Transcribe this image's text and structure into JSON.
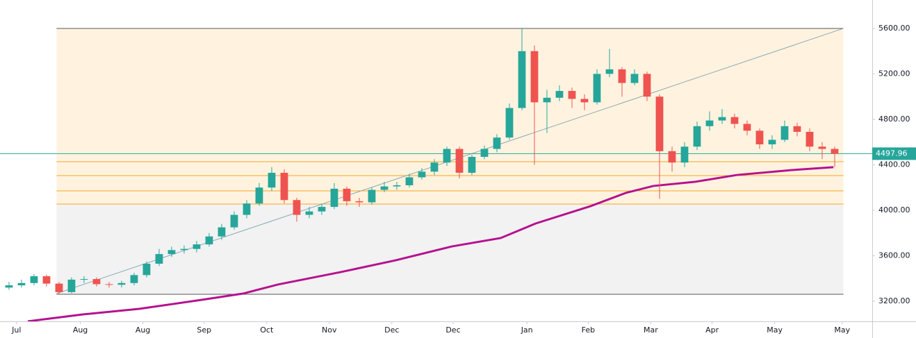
{
  "chart_data": {
    "type": "candlestick",
    "up_color": "#26a69a",
    "down_color": "#ef5350",
    "open": [
      3320,
      3340,
      3360,
      3420,
      3355,
      3280,
      3390,
      3395,
      3350,
      3345,
      3360,
      3430,
      3530,
      3615,
      3650,
      3660,
      3700,
      3770,
      3850,
      3960,
      4060,
      4200,
      4330,
      4090,
      3960,
      3990,
      4030,
      4190,
      4080,
      4070,
      4180,
      4210,
      4220,
      4290,
      4340,
      4420,
      4540,
      4330,
      4470,
      4540,
      4640,
      4900,
      5400,
      4950,
      4990,
      5050,
      4980,
      4950,
      5200,
      5240,
      5120,
      5200,
      5000,
      4520,
      4420,
      4560,
      4740,
      4790,
      4820,
      4760,
      4700,
      4580,
      4620,
      4740,
      4690,
      4560,
      4540
    ],
    "high": [
      3370,
      3390,
      3440,
      3435,
      3370,
      3410,
      3420,
      3410,
      3370,
      3380,
      3450,
      3550,
      3660,
      3680,
      3690,
      3730,
      3800,
      3880,
      3990,
      4090,
      4240,
      4380,
      4360,
      4110,
      4030,
      4060,
      4240,
      4210,
      4110,
      4200,
      4250,
      4250,
      4320,
      4370,
      4450,
      4560,
      4560,
      4490,
      4570,
      4670,
      4940,
      5600,
      5450,
      5060,
      5100,
      5080,
      5020,
      5240,
      5420,
      5260,
      5240,
      5220,
      5020,
      4560,
      4600,
      4780,
      4870,
      4890,
      4850,
      4790,
      4720,
      4660,
      4790,
      4770,
      4720,
      4600,
      4560
    ],
    "low": [
      3300,
      3320,
      3340,
      3330,
      3260,
      3270,
      3360,
      3330,
      3320,
      3320,
      3340,
      3410,
      3510,
      3590,
      3620,
      3630,
      3680,
      3740,
      3830,
      3930,
      4040,
      4170,
      4060,
      3900,
      3930,
      3960,
      4010,
      4040,
      4030,
      4050,
      4160,
      4180,
      4200,
      4270,
      4310,
      4390,
      4280,
      4310,
      4450,
      4510,
      4620,
      4880,
      4400,
      4680,
      4960,
      4900,
      4880,
      4930,
      5170,
      5000,
      5100,
      4960,
      4100,
      4340,
      4380,
      4530,
      4700,
      4760,
      4720,
      4660,
      4540,
      4540,
      4600,
      4650,
      4520,
      4450,
      4380
    ],
    "close": [
      3340,
      3360,
      3420,
      3355,
      3280,
      3390,
      3395,
      3350,
      3345,
      3360,
      3430,
      3530,
      3615,
      3650,
      3660,
      3700,
      3770,
      3850,
      3960,
      4060,
      4200,
      4330,
      4090,
      3960,
      3990,
      4030,
      4190,
      4080,
      4070,
      4180,
      4210,
      4220,
      4290,
      4340,
      4420,
      4540,
      4330,
      4470,
      4540,
      4640,
      4900,
      5400,
      4950,
      4990,
      5050,
      4980,
      4950,
      5200,
      5240,
      5120,
      5200,
      5000,
      4520,
      4420,
      4560,
      4740,
      4790,
      4820,
      4760,
      4700,
      4580,
      4620,
      4740,
      4690,
      4560,
      4540,
      4497.96
    ],
    "xlim": [
      -0.72,
      69
    ],
    "xticks": [
      {
        "value": 0.6,
        "label": "Jul"
      },
      {
        "value": 5.7,
        "label": "Aug"
      },
      {
        "value": 10.7,
        "label": "Aug"
      },
      {
        "value": 15.6,
        "label": "Sep"
      },
      {
        "value": 20.6,
        "label": "Oct"
      },
      {
        "value": 25.6,
        "label": "Nov"
      },
      {
        "value": 30.6,
        "label": "Dec"
      },
      {
        "value": 35.5,
        "label": "Dec"
      },
      {
        "value": 41.4,
        "label": "Jan"
      },
      {
        "value": 46.3,
        "label": "Feb"
      },
      {
        "value": 51.3,
        "label": "Mar"
      },
      {
        "value": 56.2,
        "label": "Apr"
      },
      {
        "value": 61.2,
        "label": "May"
      },
      {
        "value": 66.6,
        "label": "May"
      }
    ],
    "ylim": [
      3023,
      5850
    ],
    "yticks": [
      {
        "value": 3200,
        "label": "3200.00"
      },
      {
        "value": 3600,
        "label": "3600.00"
      },
      {
        "value": 4000,
        "label": "4000.00"
      },
      {
        "value": 4400,
        "label": "4400.00"
      },
      {
        "value": 4800,
        "label": "4800.00"
      },
      {
        "value": 5200,
        "label": "5200.00"
      },
      {
        "value": 5600,
        "label": "5600.00"
      }
    ],
    "range_box": {
      "x": [
        3.8,
        66.7
      ],
      "top": 5600,
      "split": 4055,
      "bottom": 3261,
      "upper_color": "#fff3e0",
      "lower_color": "#f2f2f2",
      "edge_color": "#555"
    },
    "levels": {
      "values": [
        4427,
        4305,
        4171,
        4055
      ],
      "color": "#f5a623"
    },
    "trendline": {
      "x": [
        3.8,
        66.7
      ],
      "values": [
        3268,
        5600
      ],
      "color": "#8aa8b4"
    },
    "moving_average": {
      "x": [
        1.5,
        5.9,
        10.4,
        15.4,
        18.7,
        21.5,
        26.5,
        30.9,
        35.4,
        39.3,
        42.1,
        46.5,
        49.3,
        51.5,
        54.8,
        58.2,
        62.6,
        65.9
      ],
      "values": [
        3023,
        3084,
        3133,
        3212,
        3267,
        3347,
        3456,
        3560,
        3682,
        3756,
        3884,
        4037,
        4153,
        4214,
        4250,
        4311,
        4354,
        4379
      ],
      "color": "#b5128f"
    },
    "last_price": 4497.96,
    "last_price_color": "#26a69a"
  }
}
